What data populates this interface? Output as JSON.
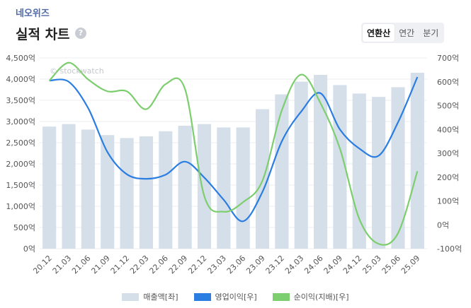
{
  "header": {
    "company": "네오위즈",
    "title": "실적 차트",
    "help_icon": "?",
    "tabs": [
      {
        "label": "연환산",
        "active": true
      },
      {
        "label": "연간",
        "active": false
      },
      {
        "label": "분기",
        "active": false
      }
    ]
  },
  "watermark": "© stockwatch",
  "colors": {
    "revenue": "#d5dfea",
    "operating_income": "#2a7de1",
    "net_income": "#7dce6e",
    "grid": "#e9ecef",
    "axis_text": "#555555"
  },
  "chart_data": {
    "type": "bar+line",
    "categories": [
      "20.12",
      "21.03",
      "21.06",
      "21.09",
      "21.12",
      "22.03",
      "22.06",
      "22.09",
      "22.12",
      "23.03",
      "23.06",
      "23.09",
      "23.12",
      "24.03",
      "24.06",
      "24.09",
      "24.12",
      "25.03",
      "25.06",
      "25.09"
    ],
    "left_axis": {
      "min": 0,
      "max": 4500,
      "step": 500,
      "suffix": "억"
    },
    "right_axis": {
      "min": -100,
      "max": 700,
      "step": 100,
      "suffix": "억"
    },
    "series": [
      {
        "name": "매출액[좌]",
        "type": "bar",
        "axis": "left",
        "values": [
          2880,
          2940,
          2810,
          2680,
          2610,
          2650,
          2770,
          2900,
          2940,
          2860,
          2860,
          3290,
          3640,
          3940,
          4100,
          3860,
          3660,
          3580,
          3810,
          4150
        ]
      },
      {
        "name": "영업이익[우]",
        "type": "line",
        "axis": "right",
        "values": [
          605,
          600,
          490,
          305,
          212,
          193,
          210,
          265,
          198,
          105,
          15,
          138,
          350,
          475,
          552,
          400,
          320,
          290,
          430,
          620
        ]
      },
      {
        "name": "순이익(지배)[우]",
        "type": "line",
        "axis": "right",
        "values": [
          605,
          680,
          610,
          560,
          560,
          485,
          590,
          570,
          120,
          55,
          95,
          185,
          480,
          630,
          510,
          320,
          25,
          -80,
          -35,
          225
        ]
      }
    ]
  }
}
